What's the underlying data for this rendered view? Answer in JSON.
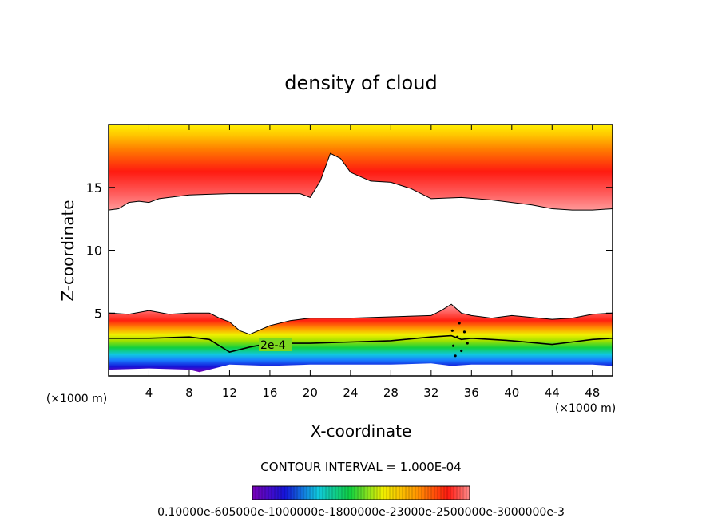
{
  "chart_data": {
    "type": "contour",
    "title": "density of cloud",
    "xlabel": "X-coordinate",
    "ylabel": "Z-coordinate",
    "x_unit": "(×1000 m)",
    "xlim": [
      0,
      50
    ],
    "ylim": [
      0,
      20
    ],
    "x_ticks": [
      4,
      8,
      12,
      16,
      20,
      24,
      28,
      32,
      36,
      40,
      44,
      48
    ],
    "y_ticks": [
      5,
      10,
      15
    ],
    "contour_interval_text": "CONTOUR INTERVAL = 1.000E-04",
    "contour_label": "2e-4",
    "colorbar_text": "0.10000e-605000e-1000000e-1800000e-23000e-2500000e-3000000e-3",
    "colors": {
      "violet": "#7a00b8",
      "blue": "#1010d0",
      "cyan": "#10c8e0",
      "green": "#10d040",
      "yellow": "#f0f000",
      "orange": "#ff8800",
      "red": "#ff1010",
      "light_red": "#ff8c8c",
      "clear": "#ffffff"
    },
    "boundaries": {
      "upper_cloud_base_z": {
        "x": [
          0,
          1,
          2,
          3,
          4,
          5,
          8,
          12,
          16,
          19,
          20,
          21,
          22,
          23,
          24,
          26,
          28,
          30,
          32,
          35,
          38,
          40,
          42,
          44,
          46,
          48,
          50
        ],
        "z": [
          13.2,
          13.3,
          13.8,
          13.9,
          13.8,
          14.1,
          14.4,
          14.5,
          14.5,
          14.5,
          14.2,
          15.5,
          17.7,
          17.3,
          16.2,
          15.5,
          15.4,
          14.9,
          14.1,
          14.2,
          14.0,
          13.8,
          13.6,
          13.3,
          13.2,
          13.2,
          13.3
        ]
      },
      "lower_cloud_top_z": {
        "x": [
          0,
          2,
          4,
          6,
          8,
          10,
          11,
          12,
          13,
          14,
          16,
          18,
          20,
          24,
          28,
          32,
          33,
          34,
          35,
          36,
          38,
          40,
          44,
          46,
          48,
          50
        ],
        "z": [
          5.0,
          4.9,
          5.2,
          4.9,
          5.0,
          5.0,
          4.6,
          4.3,
          3.6,
          3.3,
          4.0,
          4.4,
          4.6,
          4.6,
          4.7,
          4.8,
          5.2,
          5.7,
          5.0,
          4.8,
          4.6,
          4.8,
          4.5,
          4.6,
          4.9,
          5.0
        ]
      },
      "contour_2e-4_z": {
        "x": [
          0,
          4,
          8,
          10,
          11,
          12,
          14,
          16,
          20,
          24,
          28,
          32,
          34,
          35,
          36,
          38,
          40,
          44,
          46,
          48,
          50
        ],
        "z": [
          3.0,
          3.0,
          3.1,
          2.9,
          2.4,
          1.9,
          2.3,
          2.6,
          2.6,
          2.7,
          2.8,
          3.1,
          3.2,
          2.9,
          3.0,
          2.9,
          2.8,
          2.5,
          2.7,
          2.9,
          3.0
        ]
      },
      "lower_cloud_base_z": {
        "x": [
          0,
          4,
          8,
          9,
          10,
          12,
          16,
          20,
          24,
          28,
          32,
          34,
          36,
          40,
          44,
          48,
          50
        ],
        "z": [
          0.5,
          0.6,
          0.5,
          0.3,
          0.5,
          0.9,
          0.8,
          0.9,
          0.9,
          0.9,
          1.0,
          0.8,
          0.9,
          0.9,
          0.9,
          0.9,
          0.8
        ]
      }
    }
  }
}
